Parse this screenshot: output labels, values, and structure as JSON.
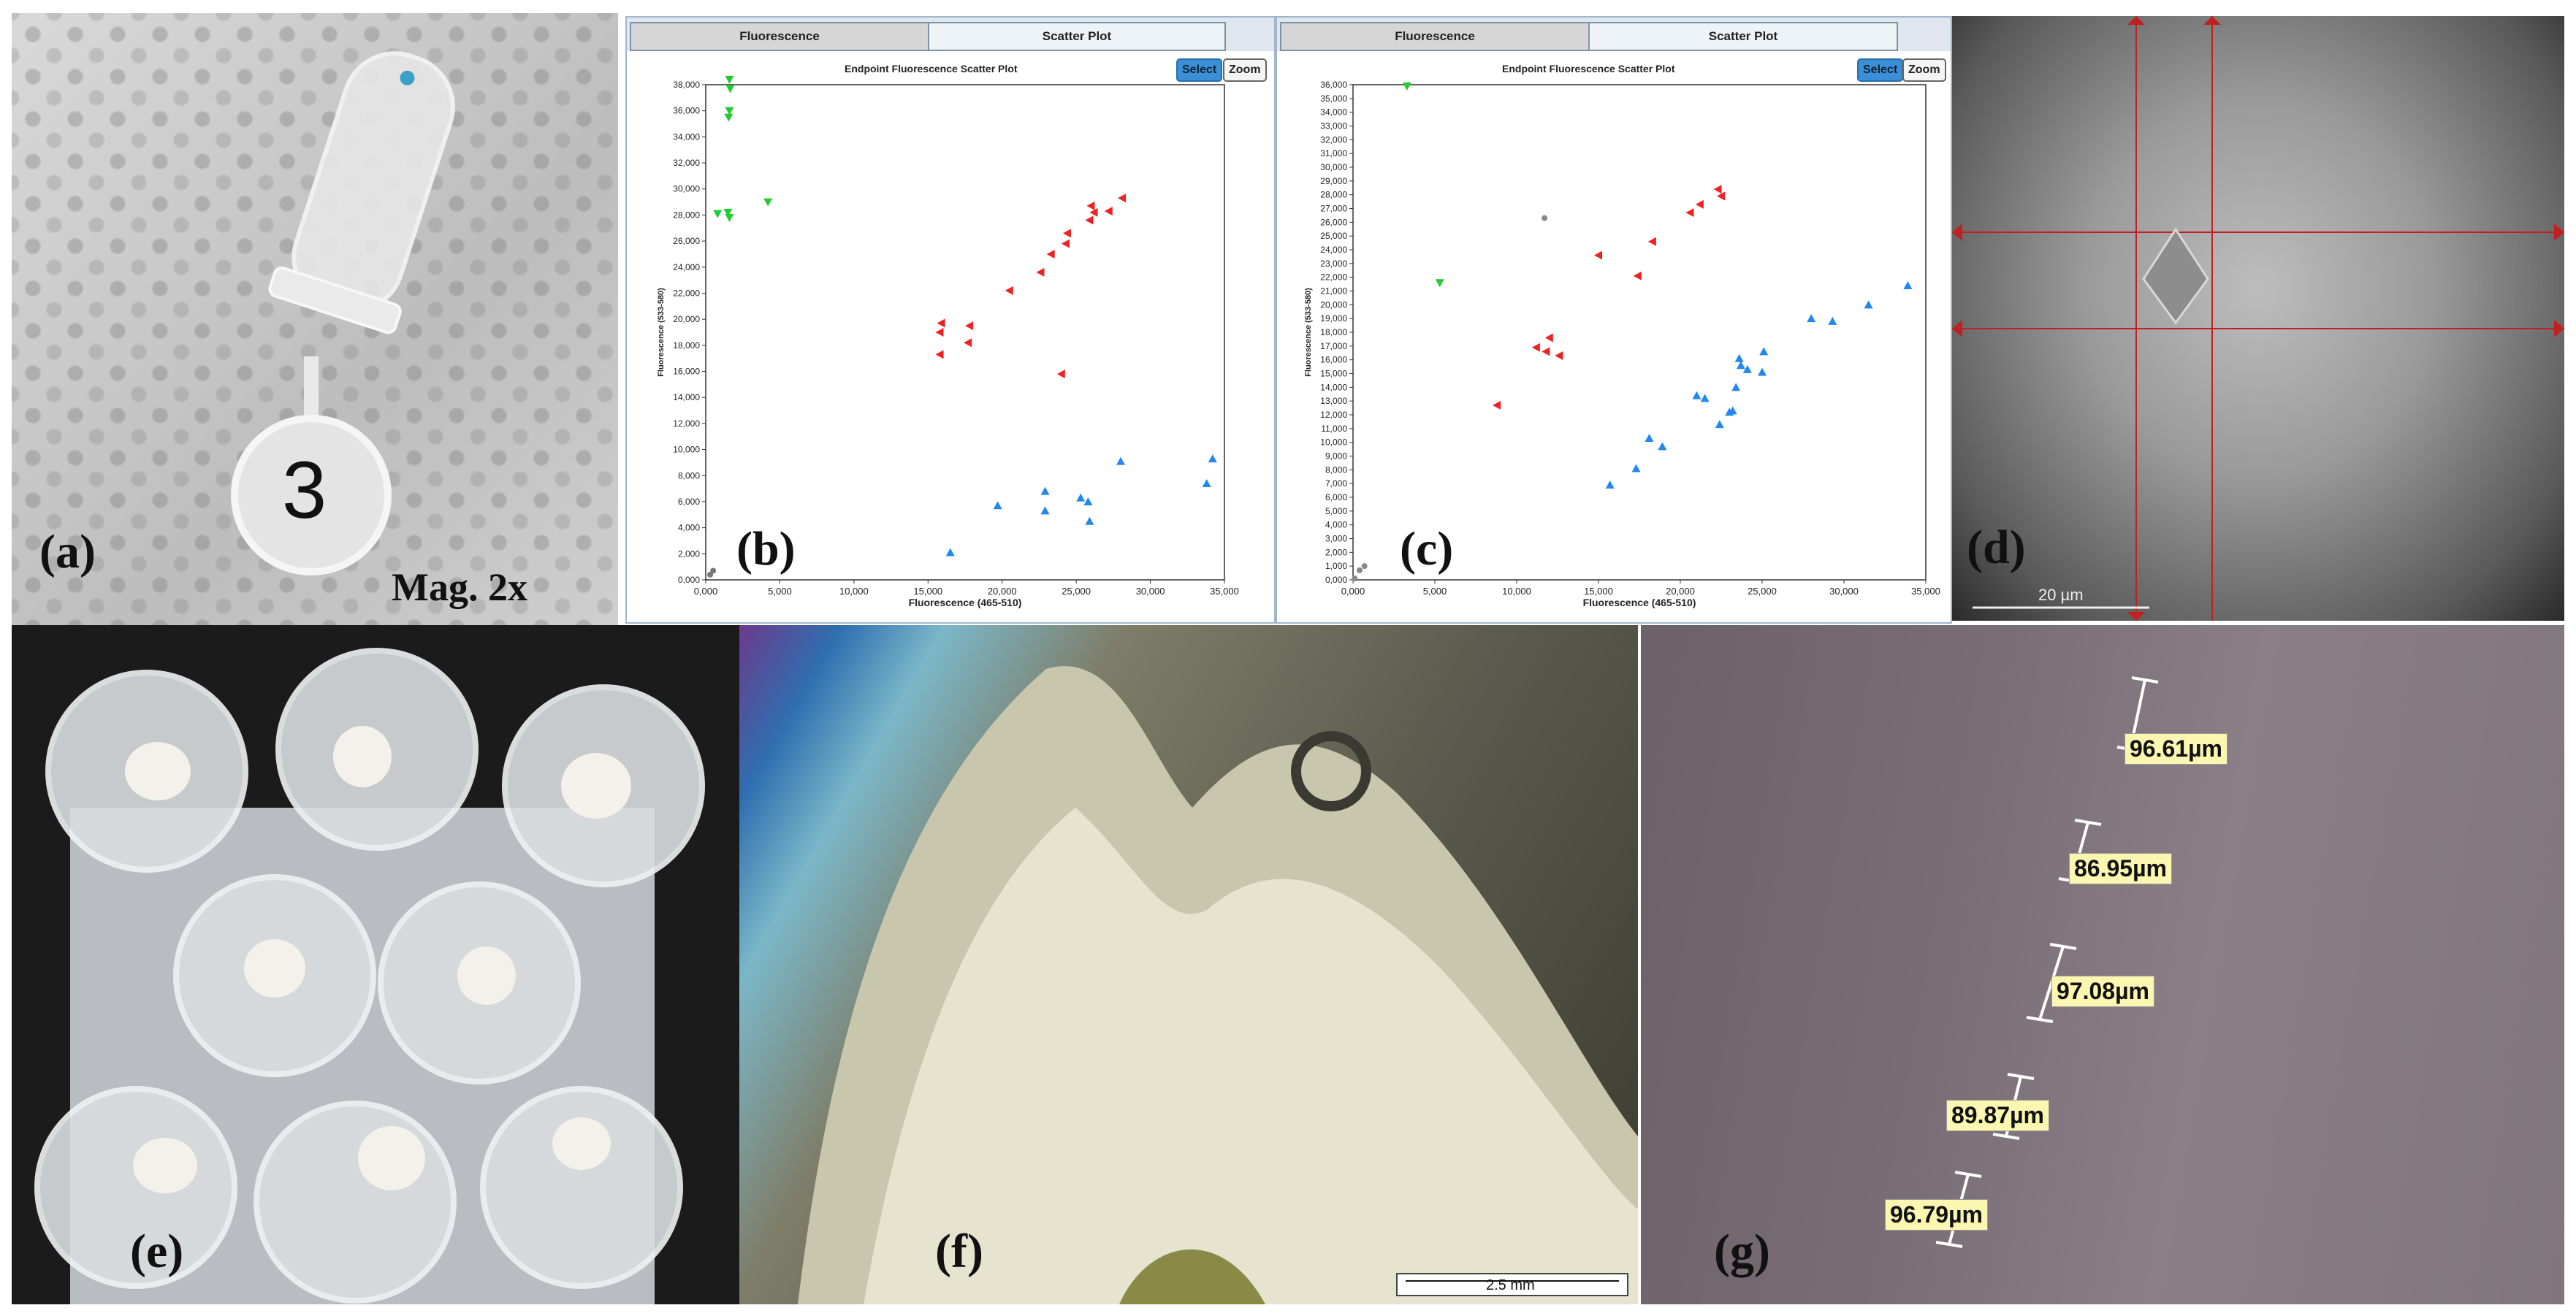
{
  "labels": {
    "a": "(a)",
    "b": "(b)",
    "c": "(c)",
    "d": "(d)",
    "e": "(e)",
    "f": "(f)",
    "g": "(g)"
  },
  "panel_a": {
    "magnification": "Mag. 2x",
    "tube_number": "3"
  },
  "screenshot_tabs": [
    "Fluorescence",
    "Scatter Plot"
  ],
  "screenshot_buttons": {
    "select": "Select",
    "zoom": "Zoom"
  },
  "chart_data": [
    {
      "type": "scatter",
      "title": "Endpoint Fluorescence Scatter Plot",
      "xlabel": "Fluorescence (465-510)",
      "ylabel": "Fluorescence (533-580)",
      "xlim": [
        0,
        35000
      ],
      "ylim": [
        0,
        38000
      ],
      "x_ticks": [
        "0,000",
        "5,000",
        "10,000",
        "15,000",
        "20,000",
        "25,000",
        "30,000",
        "35,000"
      ],
      "y_ticks": [
        "0,000",
        "2,000",
        "4,000",
        "6,000",
        "8,000",
        "10,000",
        "12,000",
        "14,000",
        "16,000",
        "18,000",
        "20,000",
        "22,000",
        "24,000",
        "26,000",
        "28,000",
        "30,000",
        "32,000",
        "34,000",
        "36,000",
        "38,000"
      ],
      "series": [
        {
          "color": "#22cc33",
          "marker": "triangle-down",
          "points": [
            [
              1600,
              38400
            ],
            [
              1650,
              37700
            ],
            [
              1600,
              36000
            ],
            [
              1550,
              35500
            ],
            [
              800,
              28100
            ],
            [
              1500,
              28200
            ],
            [
              1600,
              27800
            ],
            [
              4200,
              29000
            ]
          ]
        },
        {
          "color": "#ee2222",
          "marker": "triangle-left",
          "points": [
            [
              15900,
              19700
            ],
            [
              15800,
              19000
            ],
            [
              15800,
              17300
            ],
            [
              17800,
              19500
            ],
            [
              17700,
              18200
            ],
            [
              20500,
              22200
            ],
            [
              22600,
              23600
            ],
            [
              23300,
              25000
            ],
            [
              24400,
              26600
            ],
            [
              24300,
              25800
            ],
            [
              26000,
              28700
            ],
            [
              26200,
              28200
            ],
            [
              25900,
              27600
            ],
            [
              27200,
              28300
            ],
            [
              28100,
              29300
            ],
            [
              24000,
              15800
            ]
          ]
        },
        {
          "color": "#2288ee",
          "marker": "triangle-up",
          "points": [
            [
              16500,
              2100
            ],
            [
              19700,
              5700
            ],
            [
              22900,
              6800
            ],
            [
              22900,
              5300
            ],
            [
              25300,
              6300
            ],
            [
              25800,
              6000
            ],
            [
              25900,
              4500
            ],
            [
              28000,
              9100
            ],
            [
              33800,
              7400
            ],
            [
              34200,
              9300
            ]
          ]
        },
        {
          "color": "#777777",
          "marker": "dot",
          "points": [
            [
              300,
              400
            ],
            [
              500,
              700
            ]
          ]
        }
      ]
    },
    {
      "type": "scatter",
      "title": "Endpoint Fluorescence Scatter Plot",
      "xlabel": "Fluorescence (465-510)",
      "ylabel": "Fluorescence (533-580)",
      "xlim": [
        0,
        35000
      ],
      "ylim": [
        0,
        36000
      ],
      "x_ticks": [
        "0,000",
        "5,000",
        "10,000",
        "15,000",
        "20,000",
        "25,000",
        "30,000",
        "35,000"
      ],
      "y_ticks": [
        "0,000",
        "1,000",
        "2,000",
        "3,000",
        "4,000",
        "5,000",
        "6,000",
        "7,000",
        "8,000",
        "9,000",
        "10,000",
        "11,000",
        "12,000",
        "13,000",
        "14,000",
        "15,000",
        "16,000",
        "17,000",
        "18,000",
        "19,000",
        "20,000",
        "21,000",
        "22,000",
        "23,000",
        "24,000",
        "25,000",
        "26,000",
        "27,000",
        "28,000",
        "29,000",
        "30,000",
        "31,000",
        "32,000",
        "33,000",
        "34,000",
        "35,000",
        "36,000"
      ],
      "series": [
        {
          "color": "#22cc33",
          "marker": "triangle-down",
          "points": [
            [
              3300,
              35900
            ],
            [
              5300,
              21600
            ]
          ]
        },
        {
          "color": "#ee2222",
          "marker": "triangle-left",
          "points": [
            [
              8800,
              12700
            ],
            [
              11200,
              16900
            ],
            [
              11800,
              16600
            ],
            [
              12000,
              17600
            ],
            [
              12600,
              16300
            ],
            [
              15000,
              23600
            ],
            [
              17400,
              22100
            ],
            [
              18300,
              24600
            ],
            [
              20600,
              26700
            ],
            [
              21200,
              27300
            ],
            [
              22300,
              28400
            ],
            [
              22500,
              27900
            ]
          ]
        },
        {
          "color": "#2288ee",
          "marker": "triangle-up",
          "points": [
            [
              15700,
              6900
            ],
            [
              17300,
              8100
            ],
            [
              18100,
              10300
            ],
            [
              18900,
              9700
            ],
            [
              21000,
              13400
            ],
            [
              21500,
              13200
            ],
            [
              22400,
              11300
            ],
            [
              23000,
              12200
            ],
            [
              23200,
              12300
            ],
            [
              23400,
              14000
            ],
            [
              23600,
              16100
            ],
            [
              23700,
              15600
            ],
            [
              24100,
              15300
            ],
            [
              25100,
              16600
            ],
            [
              25000,
              15100
            ],
            [
              28000,
              19000
            ],
            [
              29300,
              18800
            ],
            [
              31500,
              20000
            ],
            [
              33900,
              21400
            ]
          ]
        },
        {
          "color": "#888888",
          "marker": "dot",
          "points": [
            [
              100,
              100
            ],
            [
              400,
              700
            ],
            [
              700,
              1000
            ],
            [
              11700,
              26300
            ]
          ]
        }
      ]
    }
  ],
  "panel_d": {
    "scalebar": "20 µm"
  },
  "panel_f": {
    "scalebar": "2.5 mm"
  },
  "panel_g": {
    "measurements": [
      "96.61µm",
      "86.95µm",
      "97.08µm",
      "89.87µm",
      "96.79µm"
    ]
  }
}
